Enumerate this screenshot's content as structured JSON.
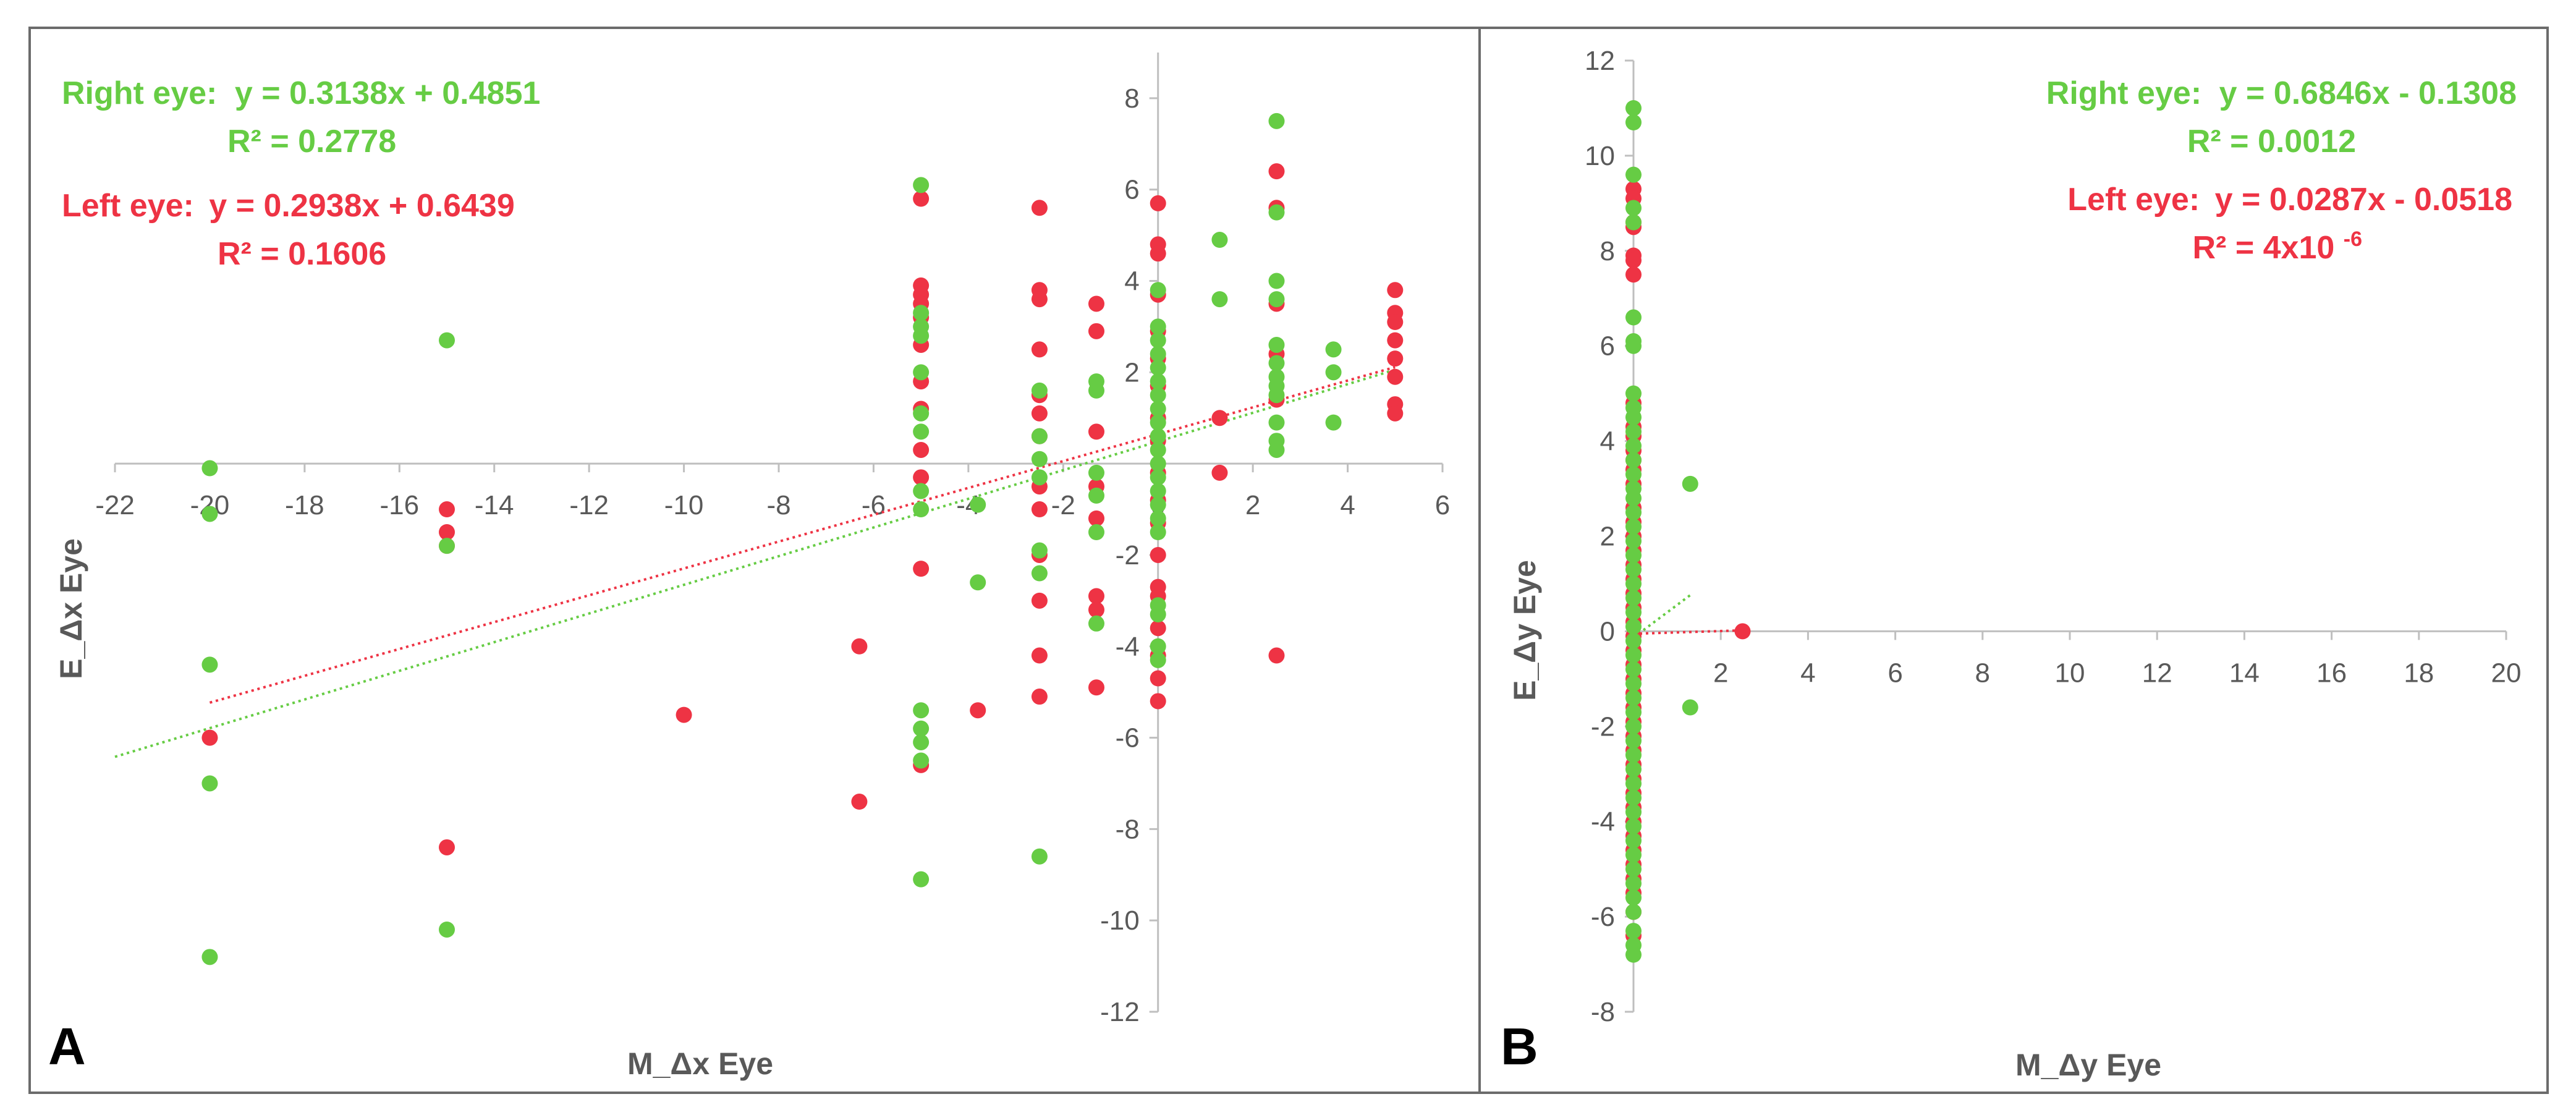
{
  "colors": {
    "right_eye": "#66cc44",
    "left_eye": "#ee3344",
    "axis": "#bfbfbf",
    "text": "#595959",
    "border": "#6b6b6b"
  },
  "chart_data": [
    {
      "panel": "A",
      "type": "scatter",
      "xlabel": "M_Δx Eye",
      "ylabel": "E_Δx Eye",
      "xlim": [
        -22,
        6
      ],
      "ylim": [
        -12,
        9
      ],
      "x_ticks": [
        -22,
        -20,
        -18,
        -16,
        -14,
        -12,
        -10,
        -8,
        -6,
        -4,
        -2,
        0,
        2,
        4,
        6
      ],
      "y_ticks": [
        -12,
        -10,
        -8,
        -6,
        -4,
        -2,
        0,
        2,
        4,
        6,
        8
      ],
      "annotations": {
        "right_eq_label": "Right eye:",
        "right_eq": "y = 0.3138x + 0.4851",
        "right_r2": "R² = 0.2778",
        "left_eq_label": "Left eye:",
        "left_eq": "y = 0.2938x + 0.6439",
        "left_r2": "R² = 0.1606"
      },
      "series": [
        {
          "name": "Left eye",
          "trendline": {
            "slope": 0.2938,
            "intercept": 0.6439,
            "x_range": [
              -20,
              5
            ]
          },
          "points": [
            [
              -20,
              -6
            ],
            [
              -15,
              -1
            ],
            [
              -15,
              -1.5
            ],
            [
              -15,
              -1.8
            ],
            [
              -15,
              -8.4
            ],
            [
              -10,
              -5.5
            ],
            [
              -6.3,
              -4
            ],
            [
              -6.3,
              -7.4
            ],
            [
              -5,
              5.8
            ],
            [
              -5,
              3.9
            ],
            [
              -5,
              3.7
            ],
            [
              -5,
              3.5
            ],
            [
              -5,
              3.2
            ],
            [
              -5,
              2.6
            ],
            [
              -5,
              1.8
            ],
            [
              -5,
              1.2
            ],
            [
              -5,
              0.3
            ],
            [
              -5,
              -0.3
            ],
            [
              -5,
              -2.3
            ],
            [
              -5,
              -6.6
            ],
            [
              -3.8,
              -5.4
            ],
            [
              -2.5,
              5.6
            ],
            [
              -2.5,
              3.8
            ],
            [
              -2.5,
              3.6
            ],
            [
              -2.5,
              2.5
            ],
            [
              -2.5,
              1.5
            ],
            [
              -2.5,
              1.1
            ],
            [
              -2.5,
              0.6
            ],
            [
              -2.5,
              -0.5
            ],
            [
              -2.5,
              -1
            ],
            [
              -2.5,
              -2
            ],
            [
              -2.5,
              -3
            ],
            [
              -2.5,
              -4.2
            ],
            [
              -2.5,
              -5.1
            ],
            [
              -1.3,
              3.5
            ],
            [
              -1.3,
              2.9
            ],
            [
              -1.3,
              0.7
            ],
            [
              -1.3,
              -0.5
            ],
            [
              -1.3,
              -1.2
            ],
            [
              -1.3,
              -2.9
            ],
            [
              -1.3,
              -3.2
            ],
            [
              -1.3,
              -4.9
            ],
            [
              0,
              5.7
            ],
            [
              0,
              4.8
            ],
            [
              0,
              4.6
            ],
            [
              0,
              3.7
            ],
            [
              0,
              2.9
            ],
            [
              0,
              2.3
            ],
            [
              0,
              1.7
            ],
            [
              0,
              1
            ],
            [
              0,
              0.5
            ],
            [
              0,
              -0.2
            ],
            [
              0,
              -0.8
            ],
            [
              0,
              -1.3
            ],
            [
              0,
              -2
            ],
            [
              0,
              -2.7
            ],
            [
              0,
              -2.9
            ],
            [
              0,
              -3.6
            ],
            [
              0,
              -4.2
            ],
            [
              0,
              -4.7
            ],
            [
              0,
              -5.2
            ],
            [
              1.3,
              1
            ],
            [
              1.3,
              -0.2
            ],
            [
              2.5,
              6.4
            ],
            [
              2.5,
              5.6
            ],
            [
              2.5,
              3.5
            ],
            [
              2.5,
              2.4
            ],
            [
              2.5,
              1.4
            ],
            [
              2.5,
              -4.2
            ],
            [
              5,
              3.8
            ],
            [
              5,
              3.3
            ],
            [
              5,
              3.1
            ],
            [
              5,
              2.7
            ],
            [
              5,
              2.3
            ],
            [
              5,
              1.9
            ],
            [
              5,
              1.3
            ],
            [
              5,
              1.1
            ]
          ]
        },
        {
          "name": "Right eye",
          "trendline": {
            "slope": 0.3138,
            "intercept": 0.4851,
            "x_range": [
              -22,
              5
            ]
          },
          "points": [
            [
              -20,
              -0.1
            ],
            [
              -20,
              -1.1
            ],
            [
              -20,
              -4.4
            ],
            [
              -20,
              -7
            ],
            [
              -20,
              -10.8
            ],
            [
              -15,
              2.7
            ],
            [
              -15,
              -1.8
            ],
            [
              -15,
              -10.2
            ],
            [
              -5,
              6.1
            ],
            [
              -5,
              3.3
            ],
            [
              -5,
              3
            ],
            [
              -5,
              2.8
            ],
            [
              -5,
              2
            ],
            [
              -5,
              1.1
            ],
            [
              -5,
              0.7
            ],
            [
              -5,
              -0.6
            ],
            [
              -5,
              -1
            ],
            [
              -5,
              -5.4
            ],
            [
              -5,
              -5.8
            ],
            [
              -5,
              -6.1
            ],
            [
              -5,
              -6.5
            ],
            [
              -5,
              -9.1
            ],
            [
              -3.8,
              -0.9
            ],
            [
              -3.8,
              -2.6
            ],
            [
              -2.5,
              1.6
            ],
            [
              -2.5,
              0.6
            ],
            [
              -2.5,
              0.1
            ],
            [
              -2.5,
              -0.3
            ],
            [
              -2.5,
              -1.9
            ],
            [
              -2.5,
              -2.4
            ],
            [
              -2.5,
              -8.6
            ],
            [
              -1.3,
              1.8
            ],
            [
              -1.3,
              1.6
            ],
            [
              -1.3,
              -0.2
            ],
            [
              -1.3,
              -0.7
            ],
            [
              -1.3,
              -1.5
            ],
            [
              -1.3,
              -3.5
            ],
            [
              0,
              3.8
            ],
            [
              0,
              3
            ],
            [
              0,
              2.7
            ],
            [
              0,
              2.4
            ],
            [
              0,
              2.1
            ],
            [
              0,
              1.8
            ],
            [
              0,
              1.5
            ],
            [
              0,
              1.2
            ],
            [
              0,
              0.9
            ],
            [
              0,
              0.6
            ],
            [
              0,
              0.3
            ],
            [
              0,
              0
            ],
            [
              0,
              -0.3
            ],
            [
              0,
              -0.6
            ],
            [
              0,
              -0.9
            ],
            [
              0,
              -1.2
            ],
            [
              0,
              -1.5
            ],
            [
              0,
              -3.1
            ],
            [
              0,
              -3.3
            ],
            [
              0,
              -4
            ],
            [
              0,
              -4.3
            ],
            [
              1.3,
              4.9
            ],
            [
              1.3,
              3.6
            ],
            [
              2.5,
              7.5
            ],
            [
              2.5,
              5.5
            ],
            [
              2.5,
              4
            ],
            [
              2.5,
              3.6
            ],
            [
              2.5,
              2.6
            ],
            [
              2.5,
              2.2
            ],
            [
              2.5,
              1.9
            ],
            [
              2.5,
              1.7
            ],
            [
              2.5,
              1.5
            ],
            [
              2.5,
              0.9
            ],
            [
              2.5,
              0.5
            ],
            [
              2.5,
              0.3
            ],
            [
              3.7,
              2.5
            ],
            [
              3.7,
              2
            ],
            [
              3.7,
              0.9
            ]
          ]
        }
      ]
    },
    {
      "panel": "B",
      "type": "scatter",
      "xlabel": "M_Δy Eye",
      "ylabel": "E_Δy Eye",
      "xlim": [
        0,
        20
      ],
      "ylim": [
        -8,
        12
      ],
      "x_ticks": [
        0,
        2,
        4,
        6,
        8,
        10,
        12,
        14,
        16,
        18,
        20
      ],
      "y_ticks": [
        -8,
        -6,
        -4,
        -2,
        0,
        2,
        4,
        6,
        8,
        10,
        12
      ],
      "annotations": {
        "right_eq_label": "Right eye:",
        "right_eq": "y = 0.6846x - 0.1308",
        "right_r2": "R² = 0.0012",
        "left_eq_label": "Left eye:",
        "left_eq": "y = 0.0287x - 0.0518",
        "left_r2_prefix": "R² = 4x10",
        "left_r2_exp": "-6"
      },
      "series": [
        {
          "name": "Left eye",
          "trendline": {
            "slope": 0.0287,
            "intercept": -0.0518,
            "x_range": [
              0,
              2.5
            ]
          },
          "points": [
            [
              0,
              9.3
            ],
            [
              0,
              9.1
            ],
            [
              0,
              8.6
            ],
            [
              0,
              8.5
            ],
            [
              0,
              7.9
            ],
            [
              0,
              7.8
            ],
            [
              0,
              7.5
            ],
            [
              0,
              4.8
            ],
            [
              0,
              4.3
            ],
            [
              0,
              4.1
            ],
            [
              0,
              3.8
            ],
            [
              0,
              3.6
            ],
            [
              0,
              3.4
            ],
            [
              0,
              3.1
            ],
            [
              0,
              2.6
            ],
            [
              0,
              2.3
            ],
            [
              0,
              2
            ],
            [
              0,
              1.7
            ],
            [
              0,
              1.4
            ],
            [
              0,
              1.1
            ],
            [
              0,
              0.8
            ],
            [
              0,
              0.5
            ],
            [
              0,
              0.2
            ],
            [
              0,
              -0.1
            ],
            [
              0,
              -0.4
            ],
            [
              0,
              -0.7
            ],
            [
              0,
              -1
            ],
            [
              0,
              -1.3
            ],
            [
              0,
              -1.6
            ],
            [
              0,
              -1.9
            ],
            [
              0,
              -2.2
            ],
            [
              0,
              -2.5
            ],
            [
              0,
              -2.8
            ],
            [
              0,
              -3.1
            ],
            [
              0,
              -3.4
            ],
            [
              0,
              -3.7
            ],
            [
              0,
              -4
            ],
            [
              0,
              -4.3
            ],
            [
              0,
              -4.6
            ],
            [
              0,
              -4.9
            ],
            [
              0,
              -5.2
            ],
            [
              0,
              -5.5
            ],
            [
              0,
              -5.9
            ],
            [
              0,
              -6.4
            ],
            [
              2.5,
              0
            ]
          ]
        },
        {
          "name": "Right eye",
          "trendline": {
            "slope": 0.6846,
            "intercept": -0.1308,
            "x_range": [
              0,
              1.3
            ]
          },
          "points": [
            [
              0,
              11
            ],
            [
              0,
              10.7
            ],
            [
              0,
              9.6
            ],
            [
              0,
              8.9
            ],
            [
              0,
              8.6
            ],
            [
              0,
              6.6
            ],
            [
              0,
              6.1
            ],
            [
              0,
              6
            ],
            [
              0,
              5
            ],
            [
              0,
              4.7
            ],
            [
              0,
              4.5
            ],
            [
              0,
              4.2
            ],
            [
              0,
              3.9
            ],
            [
              0,
              3.6
            ],
            [
              0,
              3.3
            ],
            [
              0,
              3
            ],
            [
              0,
              2.8
            ],
            [
              0,
              2.5
            ],
            [
              0,
              2.2
            ],
            [
              0,
              1.9
            ],
            [
              0,
              1.6
            ],
            [
              0,
              1.3
            ],
            [
              0,
              1
            ],
            [
              0,
              0.7
            ],
            [
              0,
              0.4
            ],
            [
              0,
              0.1
            ],
            [
              0,
              -0.2
            ],
            [
              0,
              -0.5
            ],
            [
              0,
              -0.8
            ],
            [
              0,
              -1.1
            ],
            [
              0,
              -1.4
            ],
            [
              0,
              -1.7
            ],
            [
              0,
              -2
            ],
            [
              0,
              -2.3
            ],
            [
              0,
              -2.6
            ],
            [
              0,
              -2.9
            ],
            [
              0,
              -3.2
            ],
            [
              0,
              -3.5
            ],
            [
              0,
              -3.8
            ],
            [
              0,
              -4.1
            ],
            [
              0,
              -4.4
            ],
            [
              0,
              -4.7
            ],
            [
              0,
              -5
            ],
            [
              0,
              -5.3
            ],
            [
              0,
              -5.6
            ],
            [
              0,
              -5.9
            ],
            [
              0,
              -6.3
            ],
            [
              0,
              -6.6
            ],
            [
              0,
              -6.8
            ],
            [
              1.3,
              3.1
            ],
            [
              1.3,
              -1.6
            ]
          ]
        }
      ]
    }
  ]
}
